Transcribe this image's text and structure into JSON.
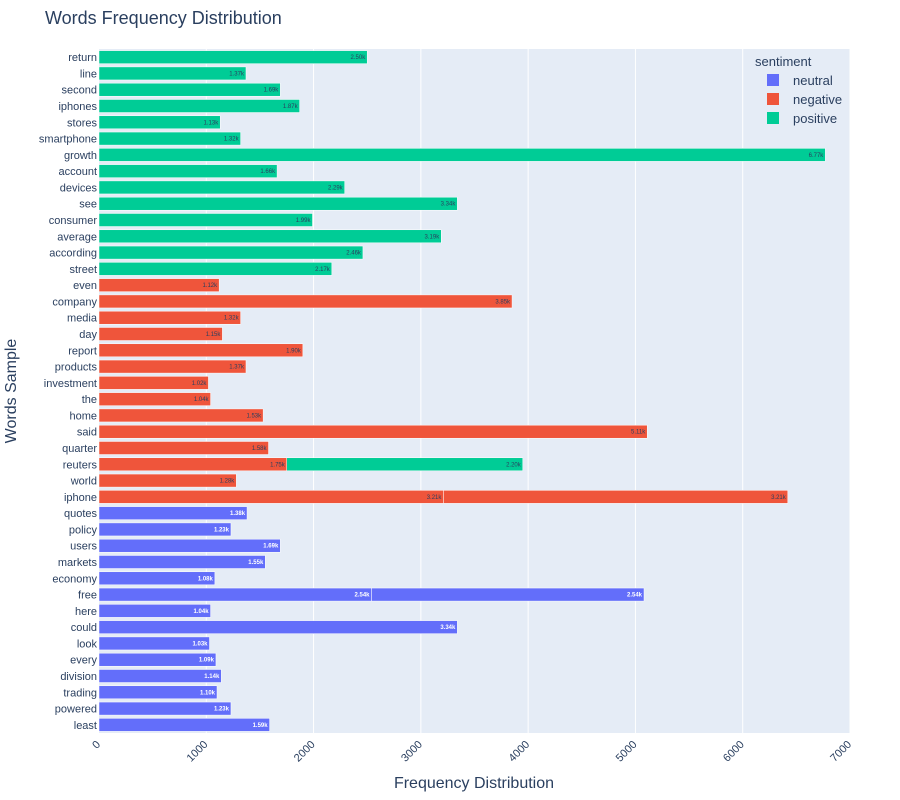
{
  "chart_data": {
    "type": "bar",
    "orientation": "horizontal",
    "barmode": "stack",
    "title": "Words Frequency Distribution",
    "xlabel": "Frequency Distribution",
    "ylabel": "Words Sample",
    "xlim": [
      0,
      7000
    ],
    "xticks": [
      "0",
      "1000",
      "2000",
      "3000",
      "4000",
      "5000",
      "6000",
      "7000"
    ],
    "legend_title": "sentiment",
    "legend_position": "top-right",
    "series": [
      {
        "name": "neutral",
        "color": "#636efa"
      },
      {
        "name": "negative",
        "color": "#ef553b"
      },
      {
        "name": "positive",
        "color": "#00cc96"
      }
    ],
    "categories": [
      "return",
      "line",
      "second",
      "iphones",
      "stores",
      "smartphone",
      "growth",
      "account",
      "devices",
      "see",
      "consumer",
      "average",
      "according",
      "street",
      "even",
      "company",
      "media",
      "day",
      "report",
      "products",
      "investment",
      "the",
      "home",
      "said",
      "quarter",
      "reuters",
      "world",
      "iphone",
      "quotes",
      "policy",
      "users",
      "markets",
      "economy",
      "free",
      "here",
      "could",
      "look",
      "every",
      "division",
      "trading",
      "powered",
      "least"
    ],
    "bars": [
      {
        "word": "return",
        "segments": [
          {
            "series": "positive",
            "value": 2500,
            "label": "2.50k"
          }
        ]
      },
      {
        "word": "line",
        "segments": [
          {
            "series": "positive",
            "value": 1370,
            "label": "1.37k"
          }
        ]
      },
      {
        "word": "second",
        "segments": [
          {
            "series": "positive",
            "value": 1690,
            "label": "1.69k"
          }
        ]
      },
      {
        "word": "iphones",
        "segments": [
          {
            "series": "positive",
            "value": 1870,
            "label": "1.87k"
          }
        ]
      },
      {
        "word": "stores",
        "segments": [
          {
            "series": "positive",
            "value": 1130,
            "label": "1.13k"
          }
        ]
      },
      {
        "word": "smartphone",
        "segments": [
          {
            "series": "positive",
            "value": 1320,
            "label": "1.32k"
          }
        ]
      },
      {
        "word": "growth",
        "segments": [
          {
            "series": "positive",
            "value": 6770,
            "label": "6.77k"
          }
        ]
      },
      {
        "word": "account",
        "segments": [
          {
            "series": "positive",
            "value": 1660,
            "label": "1.66k"
          }
        ]
      },
      {
        "word": "devices",
        "segments": [
          {
            "series": "positive",
            "value": 2290,
            "label": "2.29k"
          }
        ]
      },
      {
        "word": "see",
        "segments": [
          {
            "series": "positive",
            "value": 3340,
            "label": "3.34k"
          }
        ]
      },
      {
        "word": "consumer",
        "segments": [
          {
            "series": "positive",
            "value": 1990,
            "label": "1.99k"
          }
        ]
      },
      {
        "word": "average",
        "segments": [
          {
            "series": "positive",
            "value": 3190,
            "label": "3.19k"
          }
        ]
      },
      {
        "word": "according",
        "segments": [
          {
            "series": "positive",
            "value": 2460,
            "label": "2.46k"
          }
        ]
      },
      {
        "word": "street",
        "segments": [
          {
            "series": "positive",
            "value": 2170,
            "label": "2.17k"
          }
        ]
      },
      {
        "word": "even",
        "segments": [
          {
            "series": "negative",
            "value": 1120,
            "label": "1.12k"
          }
        ]
      },
      {
        "word": "company",
        "segments": [
          {
            "series": "negative",
            "value": 3850,
            "label": "3.85k"
          }
        ]
      },
      {
        "word": "media",
        "segments": [
          {
            "series": "negative",
            "value": 1320,
            "label": "1.32k"
          }
        ]
      },
      {
        "word": "day",
        "segments": [
          {
            "series": "negative",
            "value": 1150,
            "label": "1.15k"
          }
        ]
      },
      {
        "word": "report",
        "segments": [
          {
            "series": "negative",
            "value": 1900,
            "label": "1.90k"
          }
        ]
      },
      {
        "word": "products",
        "segments": [
          {
            "series": "negative",
            "value": 1370,
            "label": "1.37k"
          }
        ]
      },
      {
        "word": "investment",
        "segments": [
          {
            "series": "negative",
            "value": 1020,
            "label": "1.02k"
          }
        ]
      },
      {
        "word": "the",
        "segments": [
          {
            "series": "negative",
            "value": 1040,
            "label": "1.04k"
          }
        ]
      },
      {
        "word": "home",
        "segments": [
          {
            "series": "negative",
            "value": 1530,
            "label": "1.53k"
          }
        ]
      },
      {
        "word": "said",
        "segments": [
          {
            "series": "negative",
            "value": 5110,
            "label": "5.11k"
          }
        ]
      },
      {
        "word": "quarter",
        "segments": [
          {
            "series": "negative",
            "value": 1580,
            "label": "1.58k"
          }
        ]
      },
      {
        "word": "reuters",
        "segments": [
          {
            "series": "negative",
            "value": 1750,
            "label": "1.75k"
          },
          {
            "series": "positive",
            "value": 2200,
            "label": "2.20k"
          }
        ]
      },
      {
        "word": "world",
        "segments": [
          {
            "series": "negative",
            "value": 1280,
            "label": "1.28k"
          }
        ]
      },
      {
        "word": "iphone",
        "segments": [
          {
            "series": "negative",
            "value": 3210,
            "label": "3.21k"
          },
          {
            "series": "negative",
            "value": 3210,
            "label": "3.21k"
          }
        ]
      },
      {
        "word": "quotes",
        "segments": [
          {
            "series": "neutral",
            "value": 1380,
            "label": "1.38k"
          }
        ]
      },
      {
        "word": "policy",
        "segments": [
          {
            "series": "neutral",
            "value": 1230,
            "label": "1.23k"
          }
        ]
      },
      {
        "word": "users",
        "segments": [
          {
            "series": "neutral",
            "value": 1690,
            "label": "1.69k"
          }
        ]
      },
      {
        "word": "markets",
        "segments": [
          {
            "series": "neutral",
            "value": 1550,
            "label": "1.55k"
          }
        ]
      },
      {
        "word": "economy",
        "segments": [
          {
            "series": "neutral",
            "value": 1080,
            "label": "1.08k"
          }
        ]
      },
      {
        "word": "free",
        "segments": [
          {
            "series": "neutral",
            "value": 2540,
            "label": "2.54k"
          },
          {
            "series": "neutral",
            "value": 2540,
            "label": "2.54k"
          }
        ]
      },
      {
        "word": "here",
        "segments": [
          {
            "series": "neutral",
            "value": 1040,
            "label": "1.04k"
          }
        ]
      },
      {
        "word": "could",
        "segments": [
          {
            "series": "neutral",
            "value": 3340,
            "label": "3.34k"
          }
        ]
      },
      {
        "word": "look",
        "segments": [
          {
            "series": "neutral",
            "value": 1030,
            "label": "1.03k"
          }
        ]
      },
      {
        "word": "every",
        "segments": [
          {
            "series": "neutral",
            "value": 1090,
            "label": "1.09k"
          }
        ]
      },
      {
        "word": "division",
        "segments": [
          {
            "series": "neutral",
            "value": 1140,
            "label": "1.14k"
          }
        ]
      },
      {
        "word": "trading",
        "segments": [
          {
            "series": "neutral",
            "value": 1100,
            "label": "1.10k"
          }
        ]
      },
      {
        "word": "powered",
        "segments": [
          {
            "series": "neutral",
            "value": 1230,
            "label": "1.23k"
          }
        ]
      },
      {
        "word": "least",
        "segments": [
          {
            "series": "neutral",
            "value": 1590,
            "label": "1.59k"
          }
        ]
      }
    ]
  }
}
